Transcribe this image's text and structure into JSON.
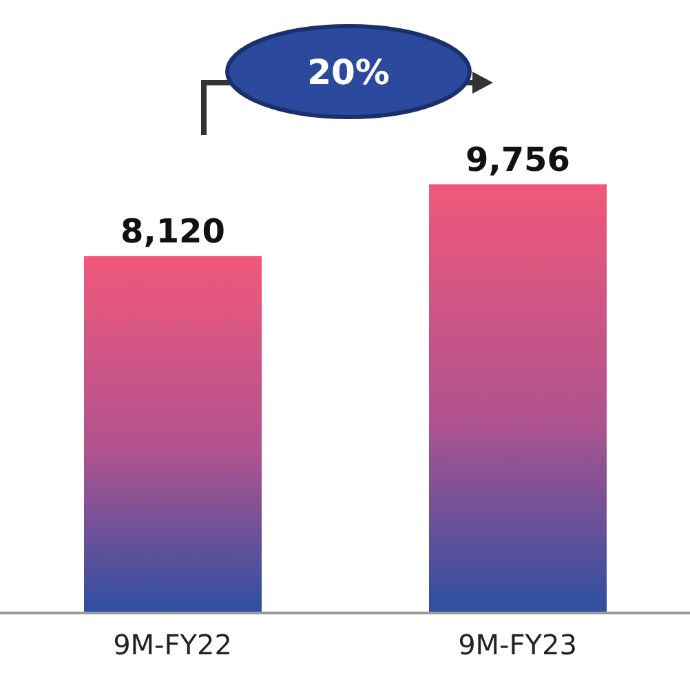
{
  "chart_data": {
    "type": "bar",
    "categories": [
      "9M-FY22",
      "9M-FY23"
    ],
    "values": [
      8120,
      9756
    ],
    "color": "#f0587a",
    "value_labels": [
      "8,120",
      "9,756"
    ],
    "annotations": [
      "20%"
    ]
  }
}
